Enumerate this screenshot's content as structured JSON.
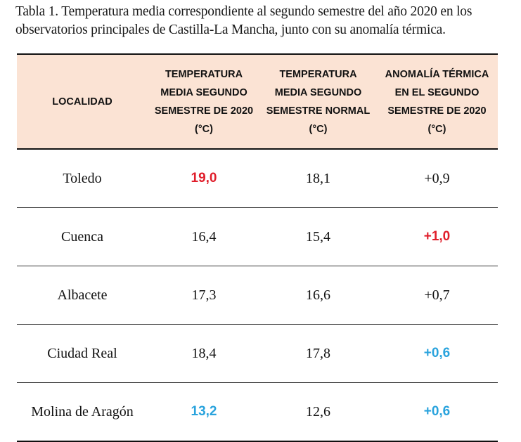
{
  "caption": "Tabla 1. Temperatura media correspondiente al segundo semestre del año 2020 en los observatorios principales de Castilla-La Mancha, junto con su anomalía térmica.",
  "colors": {
    "header_bg": "#fbe3d4",
    "highlight_red": "#e01e2b",
    "highlight_blue": "#29a3dd"
  },
  "table": {
    "headers": [
      "LOCALIDAD",
      "TEMPERATURA MEDIA SEGUNDO SEMESTRE DE 2020 (°C)",
      "TEMPERATURA MEDIA SEGUNDO SEMESTRE NORMAL (°C)",
      "ANOMALÍA TÉRMICA EN EL SEGUNDO SEMESTRE DE 2020 (°C)"
    ],
    "rows": [
      {
        "localidad": "Toledo",
        "media_2020": "19,0",
        "media_normal": "18,1",
        "anomalia": "+0,9"
      },
      {
        "localidad": "Cuenca",
        "media_2020": "16,4",
        "media_normal": "15,4",
        "anomalia": "+1,0"
      },
      {
        "localidad": "Albacete",
        "media_2020": "17,3",
        "media_normal": "16,6",
        "anomalia": "+0,7"
      },
      {
        "localidad": "Ciudad Real",
        "media_2020": "18,4",
        "media_normal": "17,8",
        "anomalia": "+0,6"
      },
      {
        "localidad": "Molina de Aragón",
        "media_2020": "13,2",
        "media_normal": "12,6",
        "anomalia": "+0,6"
      }
    ]
  }
}
